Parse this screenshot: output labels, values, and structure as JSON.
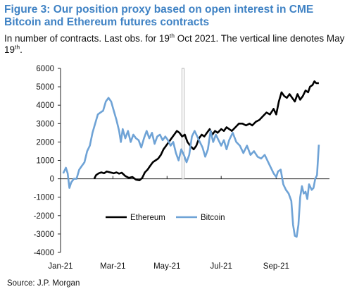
{
  "header": {
    "title": "Figure 3: Our position proxy based on open interest in CME Bitcoin and Ethereum futures contracts",
    "subtitle_part1": "In number of contracts. Last obs. for 19",
    "subtitle_sup1": "th",
    "subtitle_part2": " Oct 2021. The vertical line denotes May 19",
    "subtitle_sup2": "th",
    "subtitle_part3": "."
  },
  "footer": {
    "source": "Source: J.P. Morgan"
  },
  "colors": {
    "title": "#3f82c4",
    "ethereum": "#000000",
    "bitcoin": "#6fa3d6",
    "vline": "#b5b5b5"
  },
  "chart_data": {
    "type": "line",
    "title": "",
    "xlabel": "",
    "ylabel": "",
    "ylim": [
      -4000,
      6000
    ],
    "yticks": [
      -4000,
      -3000,
      -2000,
      -1000,
      0,
      1000,
      2000,
      3000,
      4000,
      5000,
      6000
    ],
    "ytick_labels": [
      "-4000",
      "-3000",
      "-2000",
      "-1000",
      "0",
      "1000",
      "2000",
      "3000",
      "4000",
      "5000",
      "6000"
    ],
    "xlim": [
      "2021-01-01",
      "2021-10-31"
    ],
    "xticks": [
      "2021-01-01",
      "2021-03-01",
      "2021-05-01",
      "2021-07-01",
      "2021-09-01"
    ],
    "xtick_labels": [
      "Jan-21",
      "Mar-21",
      "May-21",
      "Jul-21",
      "Sep-21"
    ],
    "vertical_line": "2021-05-19",
    "legend": {
      "placement": "bottom-center",
      "entries": [
        "Ethereum",
        "Bitcoin"
      ]
    },
    "grid": false,
    "series": [
      {
        "name": "Ethereum",
        "color": "#000000",
        "points": [
          [
            "2021-02-08",
            0
          ],
          [
            "2021-02-10",
            200
          ],
          [
            "2021-02-13",
            300
          ],
          [
            "2021-02-16",
            350
          ],
          [
            "2021-02-19",
            300
          ],
          [
            "2021-02-22",
            400
          ],
          [
            "2021-02-26",
            350
          ],
          [
            "2021-03-02",
            300
          ],
          [
            "2021-03-05",
            350
          ],
          [
            "2021-03-08",
            280
          ],
          [
            "2021-03-11",
            330
          ],
          [
            "2021-03-15",
            150
          ],
          [
            "2021-03-19",
            50
          ],
          [
            "2021-03-23",
            100
          ],
          [
            "2021-03-27",
            -50
          ],
          [
            "2021-03-31",
            -80
          ],
          [
            "2021-04-03",
            50
          ],
          [
            "2021-04-06",
            350
          ],
          [
            "2021-04-09",
            500
          ],
          [
            "2021-04-12",
            700
          ],
          [
            "2021-04-15",
            900
          ],
          [
            "2021-04-18",
            1000
          ],
          [
            "2021-04-21",
            1100
          ],
          [
            "2021-04-24",
            1300
          ],
          [
            "2021-04-27",
            1600
          ],
          [
            "2021-04-30",
            1800
          ],
          [
            "2021-05-03",
            2000
          ],
          [
            "2021-05-06",
            2200
          ],
          [
            "2021-05-09",
            2400
          ],
          [
            "2021-05-12",
            2600
          ],
          [
            "2021-05-15",
            2500
          ],
          [
            "2021-05-18",
            2300
          ],
          [
            "2021-05-21",
            2400
          ],
          [
            "2021-05-24",
            2000
          ],
          [
            "2021-05-27",
            1800
          ],
          [
            "2021-05-31",
            1600
          ],
          [
            "2021-06-03",
            1800
          ],
          [
            "2021-06-06",
            2200
          ],
          [
            "2021-06-09",
            2400
          ],
          [
            "2021-06-12",
            2300
          ],
          [
            "2021-06-15",
            2500
          ],
          [
            "2021-06-18",
            2700
          ],
          [
            "2021-06-21",
            2400
          ],
          [
            "2021-06-24",
            2600
          ],
          [
            "2021-06-27",
            2500
          ],
          [
            "2021-07-01",
            2700
          ],
          [
            "2021-07-04",
            2600
          ],
          [
            "2021-07-07",
            2800
          ],
          [
            "2021-07-10",
            2700
          ],
          [
            "2021-07-13",
            2600
          ],
          [
            "2021-07-17",
            2800
          ],
          [
            "2021-07-21",
            3000
          ],
          [
            "2021-07-25",
            3000
          ],
          [
            "2021-07-29",
            2900
          ],
          [
            "2021-08-02",
            3000
          ],
          [
            "2021-08-05",
            2900
          ],
          [
            "2021-08-09",
            3100
          ],
          [
            "2021-08-13",
            3200
          ],
          [
            "2021-08-17",
            3400
          ],
          [
            "2021-08-21",
            3600
          ],
          [
            "2021-08-25",
            3500
          ],
          [
            "2021-08-29",
            3800
          ],
          [
            "2021-09-01",
            3500
          ],
          [
            "2021-09-04",
            4200
          ],
          [
            "2021-09-07",
            4700
          ],
          [
            "2021-09-10",
            4500
          ],
          [
            "2021-09-13",
            4400
          ],
          [
            "2021-09-16",
            4600
          ],
          [
            "2021-09-19",
            4400
          ],
          [
            "2021-09-22",
            4200
          ],
          [
            "2021-09-25",
            4600
          ],
          [
            "2021-09-28",
            4300
          ],
          [
            "2021-10-01",
            4500
          ],
          [
            "2021-10-04",
            4800
          ],
          [
            "2021-10-07",
            4700
          ],
          [
            "2021-10-09",
            5000
          ],
          [
            "2021-10-12",
            5100
          ],
          [
            "2021-10-14",
            5300
          ],
          [
            "2021-10-16",
            5200
          ],
          [
            "2021-10-19",
            5200
          ]
        ]
      },
      {
        "name": "Bitcoin",
        "color": "#6fa3d6",
        "points": [
          [
            "2021-01-04",
            300
          ],
          [
            "2021-01-07",
            600
          ],
          [
            "2021-01-09",
            300
          ],
          [
            "2021-01-11",
            -500
          ],
          [
            "2021-01-13",
            -200
          ],
          [
            "2021-01-16",
            0
          ],
          [
            "2021-01-19",
            0
          ],
          [
            "2021-01-22",
            500
          ],
          [
            "2021-01-25",
            700
          ],
          [
            "2021-01-28",
            900
          ],
          [
            "2021-01-31",
            1500
          ],
          [
            "2021-02-03",
            1800
          ],
          [
            "2021-02-06",
            2500
          ],
          [
            "2021-02-09",
            3000
          ],
          [
            "2021-02-12",
            3500
          ],
          [
            "2021-02-15",
            3600
          ],
          [
            "2021-02-18",
            3700
          ],
          [
            "2021-02-21",
            4200
          ],
          [
            "2021-02-24",
            4400
          ],
          [
            "2021-02-27",
            4200
          ],
          [
            "2021-03-02",
            3700
          ],
          [
            "2021-03-05",
            3200
          ],
          [
            "2021-03-08",
            2600
          ],
          [
            "2021-03-10",
            2000
          ],
          [
            "2021-03-12",
            2700
          ],
          [
            "2021-03-15",
            2200
          ],
          [
            "2021-03-18",
            2600
          ],
          [
            "2021-03-21",
            2000
          ],
          [
            "2021-03-24",
            2400
          ],
          [
            "2021-03-27",
            2200
          ],
          [
            "2021-03-30",
            2100
          ],
          [
            "2021-04-02",
            1700
          ],
          [
            "2021-04-05",
            2200
          ],
          [
            "2021-04-08",
            2600
          ],
          [
            "2021-04-11",
            2200
          ],
          [
            "2021-04-14",
            2500
          ],
          [
            "2021-04-17",
            1900
          ],
          [
            "2021-04-20",
            2300
          ],
          [
            "2021-04-23",
            2400
          ],
          [
            "2021-04-26",
            2100
          ],
          [
            "2021-04-29",
            2300
          ],
          [
            "2021-05-02",
            2100
          ],
          [
            "2021-05-05",
            1800
          ],
          [
            "2021-05-08",
            2000
          ],
          [
            "2021-05-11",
            1400
          ],
          [
            "2021-05-14",
            1000
          ],
          [
            "2021-05-17",
            1600
          ],
          [
            "2021-05-20",
            1300
          ],
          [
            "2021-05-23",
            900
          ],
          [
            "2021-05-26",
            1300
          ],
          [
            "2021-05-29",
            2300
          ],
          [
            "2021-06-01",
            2600
          ],
          [
            "2021-06-04",
            2300
          ],
          [
            "2021-06-07",
            2000
          ],
          [
            "2021-06-10",
            1700
          ],
          [
            "2021-06-13",
            1200
          ],
          [
            "2021-06-16",
            1600
          ],
          [
            "2021-06-19",
            2600
          ],
          [
            "2021-06-22",
            2000
          ],
          [
            "2021-06-25",
            2400
          ],
          [
            "2021-06-28",
            2100
          ],
          [
            "2021-07-01",
            1800
          ],
          [
            "2021-07-04",
            2100
          ],
          [
            "2021-07-07",
            1600
          ],
          [
            "2021-07-10",
            2100
          ],
          [
            "2021-07-14",
            2500
          ],
          [
            "2021-07-18",
            2000
          ],
          [
            "2021-07-22",
            1800
          ],
          [
            "2021-07-26",
            1400
          ],
          [
            "2021-07-30",
            1800
          ],
          [
            "2021-08-03",
            1300
          ],
          [
            "2021-08-07",
            1500
          ],
          [
            "2021-08-11",
            1200
          ],
          [
            "2021-08-15",
            1100
          ],
          [
            "2021-08-19",
            1300
          ],
          [
            "2021-08-23",
            900
          ],
          [
            "2021-08-26",
            600
          ],
          [
            "2021-08-29",
            300
          ],
          [
            "2021-09-01",
            100
          ],
          [
            "2021-09-03",
            400
          ],
          [
            "2021-09-06",
            500
          ],
          [
            "2021-09-09",
            -300
          ],
          [
            "2021-09-12",
            -600
          ],
          [
            "2021-09-15",
            -800
          ],
          [
            "2021-09-18",
            -1200
          ],
          [
            "2021-09-20",
            -2500
          ],
          [
            "2021-09-22",
            -3100
          ],
          [
            "2021-09-24",
            -3150
          ],
          [
            "2021-09-26",
            -2500
          ],
          [
            "2021-09-28",
            -1000
          ],
          [
            "2021-09-30",
            -400
          ],
          [
            "2021-10-02",
            -800
          ],
          [
            "2021-10-04",
            -700
          ],
          [
            "2021-10-06",
            -1100
          ],
          [
            "2021-10-08",
            -300
          ],
          [
            "2021-10-11",
            -600
          ],
          [
            "2021-10-13",
            -500
          ],
          [
            "2021-10-15",
            0
          ],
          [
            "2021-10-17",
            200
          ],
          [
            "2021-10-19",
            1850
          ]
        ]
      }
    ]
  }
}
